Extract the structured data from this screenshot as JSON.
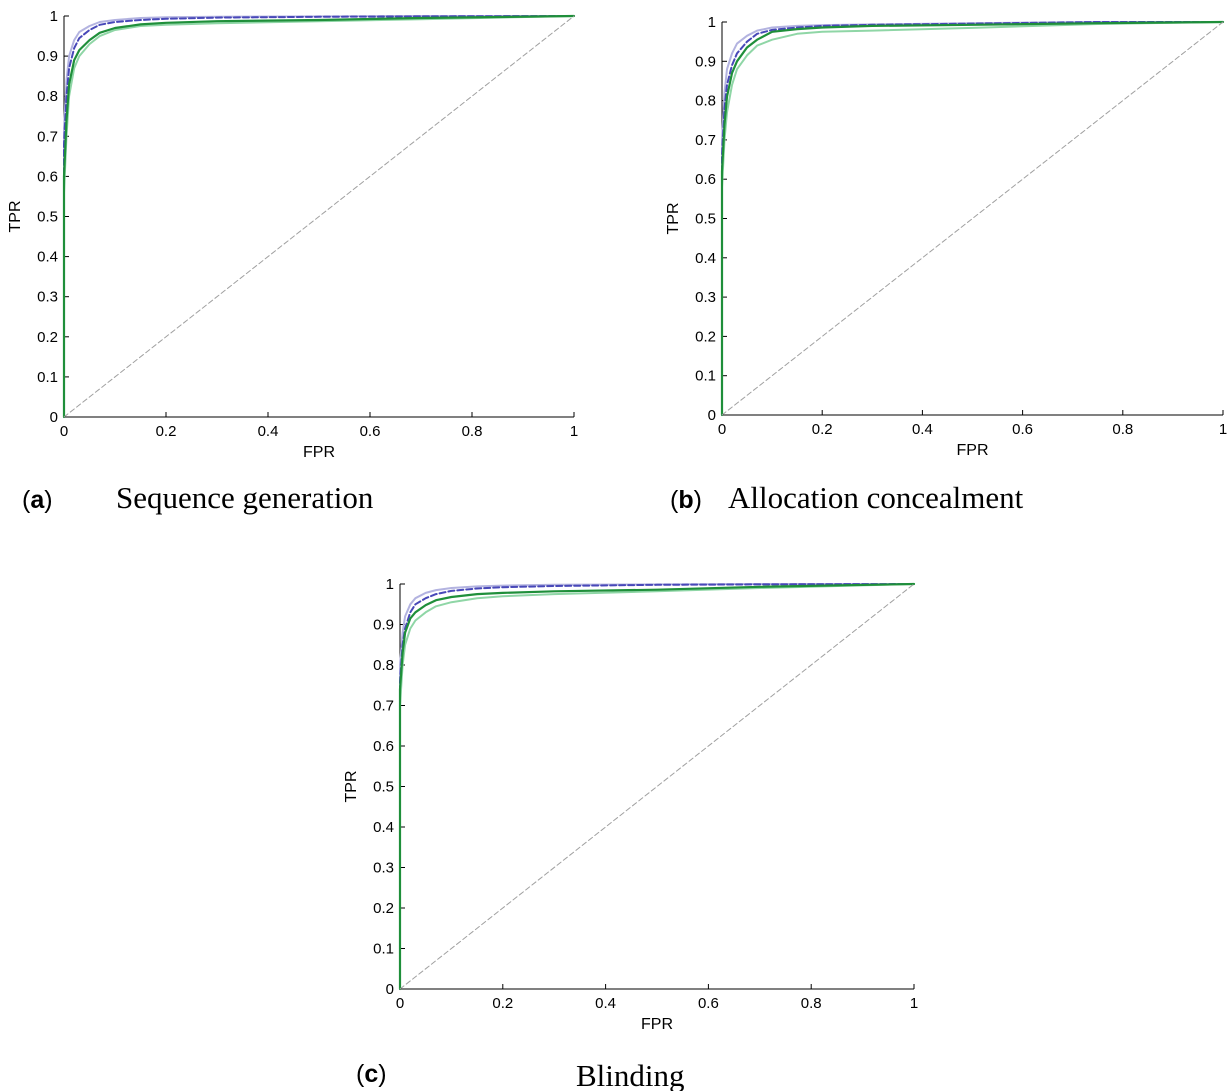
{
  "chart_data": [
    {
      "type": "line",
      "panel": "a",
      "caption": "Sequence generation",
      "xlabel": "FPR",
      "ylabel": "TPR",
      "xlim": [
        0,
        1
      ],
      "ylim": [
        0,
        1
      ],
      "xticks": [
        "0",
        "0.2",
        "0.4",
        "0.6",
        "0.8",
        "1"
      ],
      "yticks": [
        "0",
        "0.1",
        "0.2",
        "0.3",
        "0.4",
        "0.5",
        "0.6",
        "0.7",
        "0.8",
        "0.9",
        "1"
      ],
      "grid": false,
      "series": [
        {
          "color": "#b3b3e0",
          "style": "solid",
          "x": [
            0,
            0,
            0.005,
            0.01,
            0.02,
            0.03,
            0.05,
            0.07,
            0.1,
            0.15,
            0.2,
            0.3,
            0.5,
            0.7,
            1
          ],
          "y": [
            0,
            0.72,
            0.84,
            0.9,
            0.94,
            0.96,
            0.975,
            0.985,
            0.99,
            0.995,
            0.997,
            0.998,
            0.999,
            1,
            1
          ]
        },
        {
          "color": "#4848b8",
          "style": "dashed",
          "x": [
            0,
            0,
            0.005,
            0.01,
            0.02,
            0.03,
            0.05,
            0.07,
            0.1,
            0.15,
            0.2,
            0.3,
            0.5,
            0.7,
            1
          ],
          "y": [
            0,
            0.68,
            0.8,
            0.87,
            0.92,
            0.945,
            0.965,
            0.978,
            0.985,
            0.99,
            0.993,
            0.996,
            0.998,
            0.999,
            1
          ]
        },
        {
          "color": "#8fd6a6",
          "style": "solid",
          "x": [
            0,
            0,
            0.005,
            0.01,
            0.02,
            0.03,
            0.05,
            0.07,
            0.1,
            0.15,
            0.2,
            0.3,
            0.5,
            0.7,
            1
          ],
          "y": [
            0,
            0.56,
            0.7,
            0.8,
            0.87,
            0.9,
            0.93,
            0.95,
            0.965,
            0.975,
            0.978,
            0.982,
            0.987,
            0.992,
            1
          ]
        },
        {
          "color": "#1f8f3a",
          "style": "solid",
          "x": [
            0,
            0,
            0.005,
            0.01,
            0.02,
            0.03,
            0.05,
            0.07,
            0.1,
            0.15,
            0.2,
            0.3,
            0.5,
            0.7,
            1
          ],
          "y": [
            0,
            0.6,
            0.74,
            0.83,
            0.89,
            0.915,
            0.94,
            0.958,
            0.97,
            0.979,
            0.983,
            0.987,
            0.99,
            0.995,
            1
          ]
        },
        {
          "color": "#a0a0a0",
          "style": "dashed",
          "x": [
            0,
            1
          ],
          "y": [
            0,
            1
          ]
        }
      ]
    },
    {
      "type": "line",
      "panel": "b",
      "caption": "Allocation concealment",
      "xlabel": "FPR",
      "ylabel": "TPR",
      "xlim": [
        0,
        1
      ],
      "ylim": [
        0,
        1
      ],
      "xticks": [
        "0",
        "0.2",
        "0.4",
        "0.6",
        "0.8",
        "1"
      ],
      "yticks": [
        "0",
        "0.1",
        "0.2",
        "0.3",
        "0.4",
        "0.5",
        "0.6",
        "0.7",
        "0.8",
        "0.9",
        "1"
      ],
      "grid": false,
      "series": [
        {
          "color": "#b3b3e0",
          "style": "solid",
          "x": [
            0,
            0,
            0.005,
            0.01,
            0.02,
            0.03,
            0.05,
            0.07,
            0.1,
            0.15,
            0.2,
            0.3,
            0.5,
            0.75,
            1
          ],
          "y": [
            0,
            0.7,
            0.82,
            0.88,
            0.92,
            0.945,
            0.965,
            0.978,
            0.986,
            0.99,
            0.992,
            0.994,
            0.997,
            1,
            1
          ]
        },
        {
          "color": "#4848b8",
          "style": "dashed",
          "x": [
            0,
            0,
            0.005,
            0.01,
            0.02,
            0.03,
            0.05,
            0.07,
            0.1,
            0.15,
            0.2,
            0.3,
            0.5,
            0.75,
            1
          ],
          "y": [
            0,
            0.66,
            0.78,
            0.84,
            0.89,
            0.92,
            0.95,
            0.97,
            0.98,
            0.986,
            0.99,
            0.993,
            0.996,
            1,
            1
          ]
        },
        {
          "color": "#8fd6a6",
          "style": "solid",
          "x": [
            0,
            0,
            0.005,
            0.01,
            0.02,
            0.03,
            0.05,
            0.07,
            0.1,
            0.15,
            0.2,
            0.3,
            0.5,
            0.75,
            1
          ],
          "y": [
            0,
            0.58,
            0.7,
            0.77,
            0.84,
            0.88,
            0.915,
            0.94,
            0.955,
            0.97,
            0.975,
            0.978,
            0.985,
            0.995,
            1
          ]
        },
        {
          "color": "#1f8f3a",
          "style": "solid",
          "x": [
            0,
            0,
            0.005,
            0.01,
            0.02,
            0.03,
            0.05,
            0.07,
            0.1,
            0.15,
            0.2,
            0.3,
            0.5,
            0.75,
            1
          ],
          "y": [
            0,
            0.62,
            0.74,
            0.81,
            0.87,
            0.9,
            0.935,
            0.955,
            0.975,
            0.982,
            0.986,
            0.99,
            0.993,
            0.997,
            1
          ]
        },
        {
          "color": "#a0a0a0",
          "style": "dashed",
          "x": [
            0,
            1
          ],
          "y": [
            0,
            1
          ]
        }
      ]
    },
    {
      "type": "line",
      "panel": "c",
      "caption": "Blinding",
      "xlabel": "FPR",
      "ylabel": "TPR",
      "xlim": [
        0,
        1
      ],
      "ylim": [
        0,
        1
      ],
      "xticks": [
        "0",
        "0.2",
        "0.4",
        "0.6",
        "0.8",
        "1"
      ],
      "yticks": [
        "0",
        "0.1",
        "0.2",
        "0.3",
        "0.4",
        "0.5",
        "0.6",
        "0.7",
        "0.8",
        "0.9",
        "1"
      ],
      "grid": false,
      "series": [
        {
          "color": "#b3b3e0",
          "style": "solid",
          "x": [
            0,
            0,
            0.005,
            0.01,
            0.02,
            0.03,
            0.05,
            0.07,
            0.1,
            0.15,
            0.2,
            0.3,
            0.5,
            0.7,
            1
          ],
          "y": [
            0,
            0.8,
            0.88,
            0.92,
            0.95,
            0.965,
            0.978,
            0.985,
            0.99,
            0.994,
            0.996,
            0.998,
            0.999,
            1,
            1
          ]
        },
        {
          "color": "#4848b8",
          "style": "dashed",
          "x": [
            0,
            0,
            0.005,
            0.01,
            0.02,
            0.03,
            0.05,
            0.07,
            0.1,
            0.15,
            0.2,
            0.3,
            0.5,
            0.7,
            1
          ],
          "y": [
            0,
            0.76,
            0.85,
            0.89,
            0.93,
            0.95,
            0.965,
            0.975,
            0.983,
            0.989,
            0.992,
            0.995,
            0.998,
            0.999,
            1
          ]
        },
        {
          "color": "#8fd6a6",
          "style": "solid",
          "x": [
            0,
            0,
            0.005,
            0.01,
            0.02,
            0.03,
            0.05,
            0.07,
            0.1,
            0.15,
            0.2,
            0.3,
            0.5,
            0.7,
            1
          ],
          "y": [
            0,
            0.7,
            0.8,
            0.85,
            0.89,
            0.91,
            0.93,
            0.945,
            0.955,
            0.965,
            0.97,
            0.975,
            0.982,
            0.99,
            1
          ]
        },
        {
          "color": "#1f8f3a",
          "style": "solid",
          "x": [
            0,
            0,
            0.005,
            0.01,
            0.02,
            0.03,
            0.05,
            0.07,
            0.1,
            0.15,
            0.2,
            0.3,
            0.5,
            0.7,
            1
          ],
          "y": [
            0,
            0.74,
            0.83,
            0.88,
            0.915,
            0.93,
            0.948,
            0.96,
            0.968,
            0.975,
            0.978,
            0.982,
            0.986,
            0.993,
            1
          ]
        },
        {
          "color": "#a0a0a0",
          "style": "dashed",
          "x": [
            0,
            1
          ],
          "y": [
            0,
            1
          ]
        }
      ]
    }
  ]
}
